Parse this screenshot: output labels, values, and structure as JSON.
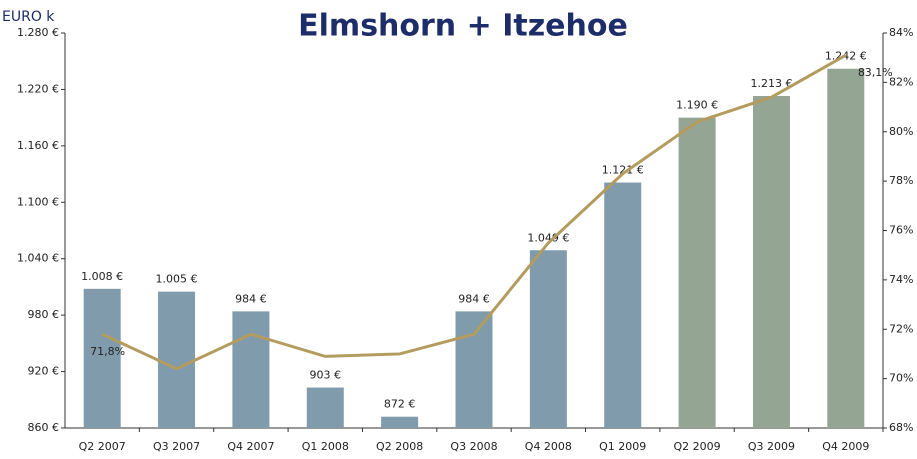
{
  "chart_data": {
    "type": "bar_line",
    "title": "Elmshorn + Itzehoe",
    "y_label": "EURO k",
    "categories": [
      "Q2 2007",
      "Q3 2007",
      "Q4 2007",
      "Q1 2008",
      "Q2 2008",
      "Q3 2008",
      "Q4 2008",
      "Q1 2009",
      "Q2 2009",
      "Q3 2009",
      "Q4 2009"
    ],
    "series": [
      {
        "type": "bar",
        "axis": "y",
        "colors": [
          "#7f9bac",
          "#7f9bac",
          "#7f9bac",
          "#7f9bac",
          "#7f9bac",
          "#7f9bac",
          "#7f9bac",
          "#7f9bac",
          "#94a594",
          "#94a594",
          "#94a594"
        ],
        "values": [
          1008,
          1005,
          984,
          903,
          872,
          984,
          1049,
          1121,
          1190,
          1213,
          1242
        ],
        "value_labels": [
          "1.008 €",
          "1.005 €",
          "984 €",
          "903 €",
          "872 €",
          "984 €",
          "1.049 €",
          "1.121 €",
          "1.190 €",
          "1.213 €",
          "1.242 €"
        ]
      },
      {
        "type": "line",
        "axis": "y2",
        "color": "#b39c5e",
        "values": [
          71.8,
          70.4,
          71.8,
          70.9,
          71.0,
          71.8,
          75.5,
          78.3,
          80.4,
          81.4,
          83.1
        ],
        "value_labels": [
          "71,8%",
          null,
          null,
          null,
          null,
          null,
          null,
          null,
          null,
          null,
          "83,1%"
        ]
      }
    ],
    "ylim": [
      860,
      1280
    ],
    "yticks": [
      {
        "value": 860,
        "label": "860 €"
      },
      {
        "value": 920,
        "label": "920 €"
      },
      {
        "value": 980,
        "label": "980 €"
      },
      {
        "value": 1040,
        "label": "1.040 €"
      },
      {
        "value": 1100,
        "label": "1.100 €"
      },
      {
        "value": 1160,
        "label": "1.160 €"
      },
      {
        "value": 1220,
        "label": "1.220 €"
      },
      {
        "value": 1280,
        "label": "1.280 €"
      }
    ],
    "y2lim": [
      68,
      84
    ],
    "y2ticks": [
      {
        "value": 68,
        "label": "68%"
      },
      {
        "value": 70,
        "label": "70%"
      },
      {
        "value": 72,
        "label": "72%"
      },
      {
        "value": 74,
        "label": "74%"
      },
      {
        "value": 76,
        "label": "76%"
      },
      {
        "value": 78,
        "label": "78%"
      },
      {
        "value": 80,
        "label": "80%"
      },
      {
        "value": 82,
        "label": "82%"
      },
      {
        "value": 84,
        "label": "84%"
      }
    ]
  }
}
